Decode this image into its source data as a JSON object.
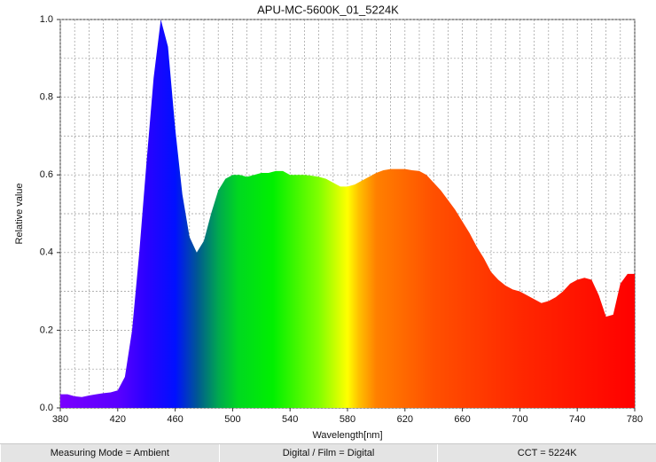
{
  "chart_data": {
    "type": "area",
    "title": "APU-MC-5600K_01_5224K",
    "x_label": "Wavelength[nm]",
    "y_label": "Relative value",
    "x": [
      380,
      385,
      390,
      395,
      400,
      405,
      410,
      415,
      420,
      425,
      430,
      435,
      440,
      445,
      450,
      455,
      460,
      465,
      470,
      475,
      480,
      485,
      490,
      495,
      500,
      505,
      510,
      515,
      520,
      525,
      530,
      535,
      540,
      545,
      550,
      555,
      560,
      565,
      570,
      575,
      580,
      585,
      590,
      595,
      600,
      605,
      610,
      615,
      620,
      625,
      630,
      635,
      640,
      645,
      650,
      655,
      660,
      665,
      670,
      675,
      680,
      685,
      690,
      695,
      700,
      705,
      710,
      715,
      720,
      725,
      730,
      735,
      740,
      745,
      750,
      755,
      760,
      765,
      770,
      775,
      780
    ],
    "values": [
      0.035,
      0.035,
      0.03,
      0.028,
      0.032,
      0.035,
      0.038,
      0.04,
      0.045,
      0.08,
      0.2,
      0.4,
      0.63,
      0.85,
      1.0,
      0.93,
      0.72,
      0.55,
      0.44,
      0.4,
      0.43,
      0.5,
      0.56,
      0.59,
      0.6,
      0.6,
      0.595,
      0.6,
      0.605,
      0.605,
      0.61,
      0.61,
      0.6,
      0.6,
      0.6,
      0.598,
      0.595,
      0.59,
      0.58,
      0.57,
      0.57,
      0.575,
      0.585,
      0.595,
      0.605,
      0.612,
      0.615,
      0.615,
      0.615,
      0.612,
      0.61,
      0.6,
      0.58,
      0.56,
      0.535,
      0.51,
      0.48,
      0.45,
      0.415,
      0.385,
      0.35,
      0.33,
      0.315,
      0.305,
      0.3,
      0.29,
      0.28,
      0.27,
      0.275,
      0.285,
      0.3,
      0.32,
      0.33,
      0.335,
      0.33,
      0.29,
      0.235,
      0.24,
      0.32,
      0.345,
      0.345
    ],
    "xlim": [
      380,
      780
    ],
    "ylim": [
      0,
      1
    ],
    "xticks": [
      380,
      420,
      460,
      500,
      540,
      580,
      620,
      660,
      700,
      740,
      780
    ],
    "yticks": [
      {
        "value": 0,
        "label": "0.0"
      },
      {
        "value": 0.2,
        "label": "0.2"
      },
      {
        "value": 0.4,
        "label": "0.4"
      },
      {
        "value": 0.6,
        "label": "0.6"
      },
      {
        "value": 0.8,
        "label": "0.8"
      },
      {
        "value": 1,
        "label": "1.0"
      }
    ],
    "x_minor_grid": [
      390,
      400,
      410,
      430,
      440,
      450,
      470,
      480,
      490,
      510,
      520,
      530,
      550,
      560,
      570,
      590,
      600,
      610,
      630,
      640,
      650,
      670,
      680,
      690,
      710,
      720,
      730,
      750,
      760,
      770
    ],
    "y_minor_grid": [
      0.1,
      0.3,
      0.5,
      0.7,
      0.9
    ],
    "grid": true
  },
  "footer": {
    "cells": [
      "Measuring Mode = Ambient",
      "Digital / Film = Digital",
      "CCT = 5224K"
    ]
  }
}
